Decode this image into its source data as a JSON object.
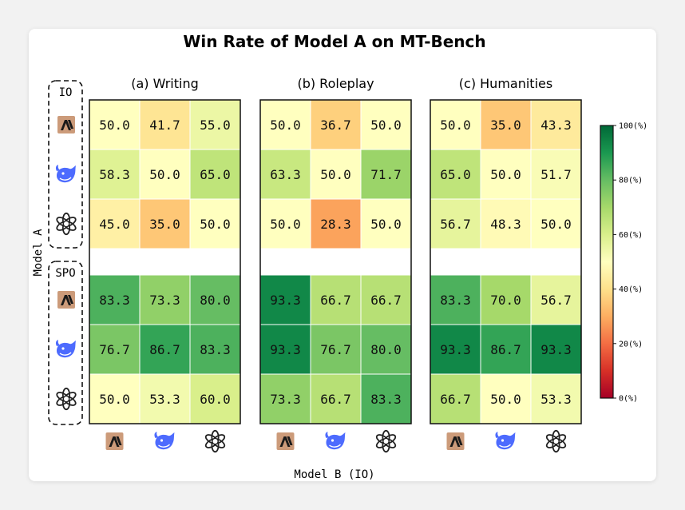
{
  "chart_data": {
    "type": "heatmap",
    "title": "Win Rate of Model A on MT-Bench",
    "xlabel": "Model B (IO)",
    "ylabel": "Model A",
    "row_groups": [
      "IO",
      "SPO"
    ],
    "models": [
      "claude-icon",
      "deepseek-icon",
      "openai-icon"
    ],
    "panels": [
      {
        "subtitle": "(a) Writing",
        "values": [
          [
            50.0,
            41.7,
            55.0
          ],
          [
            58.3,
            50.0,
            65.0
          ],
          [
            45.0,
            35.0,
            50.0
          ],
          [
            83.3,
            73.3,
            80.0
          ],
          [
            76.7,
            86.7,
            83.3
          ],
          [
            50.0,
            53.3,
            60.0
          ]
        ]
      },
      {
        "subtitle": "(b) Roleplay",
        "values": [
          [
            50.0,
            36.7,
            50.0
          ],
          [
            63.3,
            50.0,
            71.7
          ],
          [
            50.0,
            28.3,
            50.0
          ],
          [
            93.3,
            66.7,
            66.7
          ],
          [
            93.3,
            76.7,
            80.0
          ],
          [
            73.3,
            66.7,
            83.3
          ]
        ]
      },
      {
        "subtitle": "(c) Humanities",
        "values": [
          [
            50.0,
            35.0,
            43.3
          ],
          [
            65.0,
            50.0,
            51.7
          ],
          [
            56.7,
            48.3,
            50.0
          ],
          [
            83.3,
            70.0,
            56.7
          ],
          [
            93.3,
            86.7,
            93.3
          ],
          [
            66.7,
            50.0,
            53.3
          ]
        ]
      }
    ],
    "colorbar": {
      "range": [
        0,
        100
      ],
      "ticks": [
        "0(%)",
        "20(%)",
        "40(%)",
        "60(%)",
        "80(%)",
        "100(%)"
      ],
      "colormap": "RdYlGn"
    }
  }
}
